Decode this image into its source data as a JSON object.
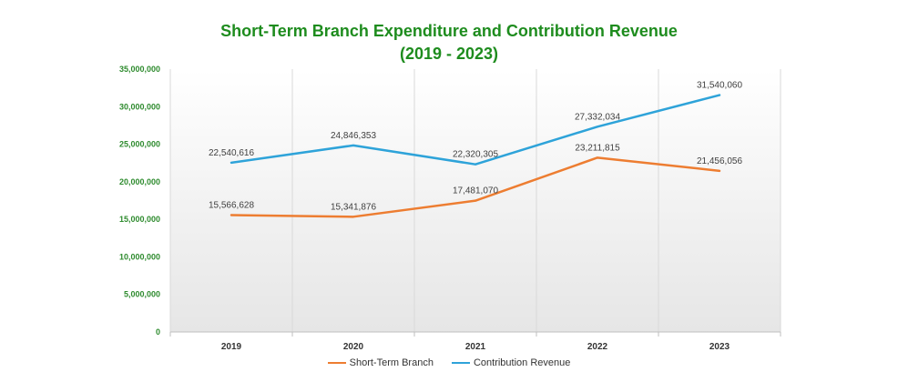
{
  "chart_data": {
    "type": "line",
    "title": "Short-Term Branch Expenditure and Contribution Revenue",
    "subtitle": "(2019 - 2023)",
    "categories": [
      "2019",
      "2020",
      "2021",
      "2022",
      "2023"
    ],
    "ylim": [
      0,
      35000000
    ],
    "yticks": [
      "0",
      "5,000,000",
      "10,000,000",
      "15,000,000",
      "20,000,000",
      "25,000,000",
      "30,000,000",
      "35,000,000"
    ],
    "grid": "vertical",
    "legend_position": "bottom",
    "series": [
      {
        "name": "Short-Term Branch",
        "color": "#ed7d31",
        "values": [
          15566628,
          15341876,
          17481070,
          23211815,
          21456056
        ],
        "labels": [
          "15,566,628",
          "15,341,876",
          "17,481,070",
          "23,211,815",
          "21,456,056"
        ]
      },
      {
        "name": "Contribution Revenue",
        "color": "#2ea3d9",
        "values": [
          22540616,
          24846353,
          22320305,
          27332034,
          31540060
        ],
        "labels": [
          "22,540,616",
          "24,846,353",
          "22,320,305",
          "27,332,034",
          "31,540,060"
        ]
      }
    ]
  }
}
